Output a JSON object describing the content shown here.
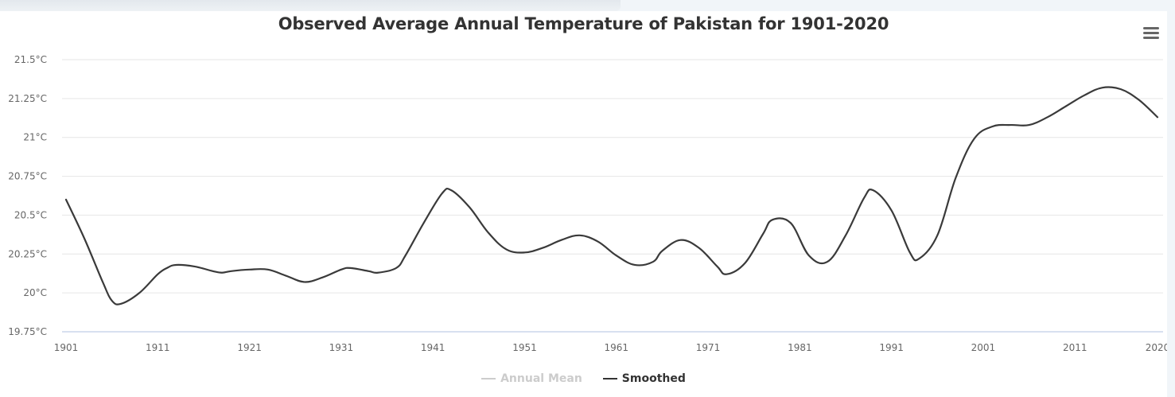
{
  "chart_data": {
    "type": "line",
    "title": "Observed Average Annual Temperature of Pakistan for 1901-2020",
    "xlabel": "",
    "ylabel": "",
    "xlim": [
      1901,
      2020
    ],
    "ylim": [
      19.75,
      21.5
    ],
    "grid": true,
    "y_ticks": [
      19.75,
      20,
      20.25,
      20.5,
      20.75,
      21,
      21.25,
      21.5
    ],
    "y_tick_labels": [
      "19.75°C",
      "20°C",
      "20.25°C",
      "20.5°C",
      "20.75°C",
      "21°C",
      "21.25°C",
      "21.5°C"
    ],
    "x_ticks": [
      1901,
      1911,
      1921,
      1931,
      1941,
      1951,
      1961,
      1971,
      1981,
      1991,
      2001,
      2011,
      2020
    ],
    "x_tick_labels": [
      "1901",
      "1911",
      "1921",
      "1931",
      "1941",
      "1951",
      "1961",
      "1971",
      "1981",
      "1991",
      "2001",
      "2011",
      "2020"
    ],
    "legend_position": "bottom-center",
    "series": [
      {
        "name": "Annual Mean",
        "visible": false,
        "color": "#cccccc",
        "x": [],
        "values": []
      },
      {
        "name": "Smoothed",
        "visible": true,
        "color": "#3a3a3a",
        "x": [
          1901,
          1903,
          1905,
          1906,
          1907,
          1909,
          1911,
          1912,
          1913,
          1915,
          1917,
          1918,
          1919,
          1921,
          1923,
          1925,
          1927,
          1929,
          1931,
          1932,
          1934,
          1935,
          1937,
          1938,
          1940,
          1942,
          1943,
          1945,
          1947,
          1949,
          1951,
          1953,
          1955,
          1957,
          1959,
          1961,
          1963,
          1965,
          1966,
          1968,
          1970,
          1972,
          1973,
          1975,
          1977,
          1978,
          1980,
          1982,
          1984,
          1986,
          1988,
          1989,
          1991,
          1993,
          1994,
          1996,
          1998,
          2000,
          2002,
          2004,
          2006,
          2008,
          2010,
          2012,
          2014,
          2016,
          2018,
          2020
        ],
        "values": [
          20.6,
          20.35,
          20.07,
          19.95,
          19.93,
          20.0,
          20.12,
          20.16,
          20.18,
          20.17,
          20.14,
          20.13,
          20.14,
          20.15,
          20.15,
          20.11,
          20.07,
          20.1,
          20.15,
          20.16,
          20.14,
          20.13,
          20.16,
          20.24,
          20.45,
          20.64,
          20.66,
          20.55,
          20.39,
          20.28,
          20.26,
          20.29,
          20.34,
          20.37,
          20.33,
          20.24,
          20.18,
          20.2,
          20.27,
          20.34,
          20.29,
          20.17,
          20.12,
          20.19,
          20.38,
          20.47,
          20.45,
          20.24,
          20.2,
          20.37,
          20.61,
          20.66,
          20.53,
          20.26,
          20.22,
          20.37,
          20.74,
          20.99,
          21.07,
          21.08,
          21.08,
          21.13,
          21.2,
          21.27,
          21.32,
          21.31,
          21.24,
          21.13
        ]
      }
    ]
  },
  "ui": {
    "menu_icon": "hamburger-menu-icon"
  }
}
